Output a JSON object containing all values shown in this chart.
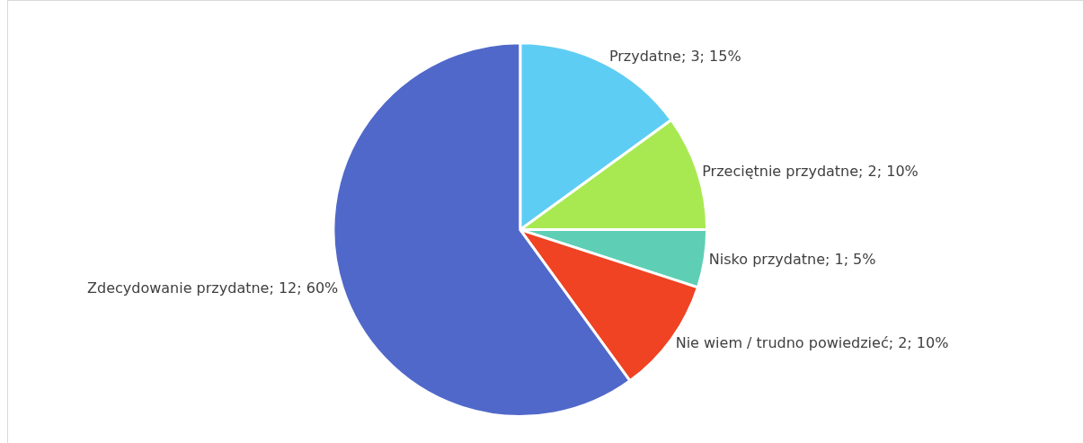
{
  "chart_data": {
    "type": "pie",
    "categories": [
      "Przydatne",
      "Przeciętnie przydatne",
      "Nisko przydatne",
      "Nie wiem / trudno powiedzieć",
      "Zdecydowanie przydatne"
    ],
    "values": [
      3,
      2,
      1,
      2,
      12
    ],
    "value_labels": [
      "3; 15%",
      "2; 10%",
      "1; 5%",
      "2; 10%",
      "12; 60%"
    ],
    "colors": [
      "#5ecdf4",
      "#a8e952",
      "#5ecfb5",
      "#ef4323",
      "#5068c9"
    ],
    "legend": false
  }
}
